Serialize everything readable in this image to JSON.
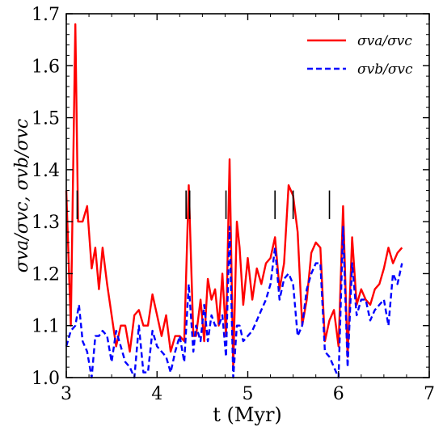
{
  "chart_data": {
    "type": "line",
    "xlabel": "t (Myr)",
    "ylabel": "σva/σvc, σvb/σvc",
    "xlim": [
      3,
      7
    ],
    "ylim": [
      1.0,
      1.7
    ],
    "xticks": [
      "3",
      "4",
      "5",
      "6",
      "7"
    ],
    "yticks": [
      "1.0",
      "1.1",
      "1.2",
      "1.3",
      "1.4",
      "1.5",
      "1.6",
      "1.7"
    ],
    "legend_position": "top-right",
    "markers_t": [
      3.12,
      4.32,
      4.36,
      4.76,
      5.3,
      5.5,
      5.9
    ],
    "series": [
      {
        "name": "σva/σvc",
        "color": "#ff0000",
        "style": "solid",
        "x": [
          3.0,
          3.05,
          3.1,
          3.13,
          3.18,
          3.23,
          3.28,
          3.32,
          3.36,
          3.4,
          3.45,
          3.5,
          3.55,
          3.6,
          3.65,
          3.7,
          3.75,
          3.8,
          3.85,
          3.9,
          3.95,
          4.0,
          4.05,
          4.1,
          4.15,
          4.2,
          4.25,
          4.3,
          4.35,
          4.4,
          4.43,
          4.48,
          4.52,
          4.56,
          4.6,
          4.64,
          4.68,
          4.72,
          4.76,
          4.8,
          4.84,
          4.88,
          4.91,
          4.95,
          5.0,
          5.05,
          5.1,
          5.15,
          5.2,
          5.25,
          5.3,
          5.35,
          5.4,
          5.45,
          5.5,
          5.55,
          5.6,
          5.65,
          5.7,
          5.75,
          5.8,
          5.85,
          5.9,
          5.95,
          6.0,
          6.05,
          6.1,
          6.15,
          6.2,
          6.25,
          6.3,
          6.35,
          6.4,
          6.45,
          6.5,
          6.55,
          6.6,
          6.65,
          6.7
        ],
        "y": [
          1.36,
          1.1,
          1.68,
          1.3,
          1.3,
          1.33,
          1.21,
          1.25,
          1.17,
          1.25,
          1.18,
          1.12,
          1.06,
          1.1,
          1.1,
          1.05,
          1.12,
          1.13,
          1.1,
          1.1,
          1.16,
          1.12,
          1.08,
          1.12,
          1.05,
          1.08,
          1.08,
          1.07,
          1.37,
          1.08,
          1.08,
          1.15,
          1.07,
          1.19,
          1.15,
          1.17,
          1.1,
          1.2,
          1.08,
          1.42,
          1.02,
          1.3,
          1.25,
          1.14,
          1.23,
          1.15,
          1.21,
          1.18,
          1.22,
          1.23,
          1.27,
          1.17,
          1.22,
          1.37,
          1.35,
          1.28,
          1.1,
          1.15,
          1.24,
          1.26,
          1.25,
          1.07,
          1.11,
          1.13,
          1.06,
          1.33,
          1.04,
          1.27,
          1.14,
          1.17,
          1.15,
          1.14,
          1.17,
          1.18,
          1.21,
          1.25,
          1.22,
          1.24,
          1.25
        ]
      },
      {
        "name": "σvb/σvc",
        "color": "#0000ff",
        "style": "dashed",
        "x": [
          3.0,
          3.05,
          3.1,
          3.14,
          3.18,
          3.23,
          3.28,
          3.32,
          3.36,
          3.4,
          3.45,
          3.5,
          3.55,
          3.6,
          3.65,
          3.7,
          3.75,
          3.8,
          3.85,
          3.9,
          3.95,
          4.0,
          4.05,
          4.1,
          4.15,
          4.2,
          4.25,
          4.3,
          4.35,
          4.4,
          4.43,
          4.48,
          4.52,
          4.56,
          4.6,
          4.64,
          4.68,
          4.72,
          4.76,
          4.8,
          4.84,
          4.88,
          4.91,
          4.95,
          5.0,
          5.05,
          5.1,
          5.15,
          5.2,
          5.25,
          5.3,
          5.35,
          5.4,
          5.45,
          5.5,
          5.55,
          5.6,
          5.65,
          5.7,
          5.75,
          5.8,
          5.85,
          5.9,
          5.95,
          6.0,
          6.05,
          6.1,
          6.15,
          6.2,
          6.25,
          6.3,
          6.35,
          6.4,
          6.45,
          6.5,
          6.55,
          6.6,
          6.65,
          6.7
        ],
        "y": [
          1.06,
          1.09,
          1.1,
          1.14,
          1.07,
          1.05,
          1.0,
          1.08,
          1.08,
          1.09,
          1.08,
          1.03,
          1.09,
          1.06,
          1.03,
          1.02,
          1.0,
          1.1,
          1.01,
          1.01,
          1.09,
          1.06,
          1.05,
          1.04,
          1.01,
          1.05,
          1.08,
          1.03,
          1.18,
          1.05,
          1.1,
          1.07,
          1.14,
          1.07,
          1.12,
          1.1,
          1.1,
          1.12,
          1.04,
          1.29,
          1.0,
          1.1,
          1.1,
          1.07,
          1.08,
          1.09,
          1.11,
          1.13,
          1.15,
          1.18,
          1.25,
          1.15,
          1.19,
          1.2,
          1.18,
          1.08,
          1.1,
          1.17,
          1.2,
          1.22,
          1.22,
          1.05,
          1.04,
          1.02,
          1.0,
          1.29,
          1.02,
          1.22,
          1.12,
          1.15,
          1.15,
          1.11,
          1.13,
          1.14,
          1.15,
          1.1,
          1.2,
          1.18,
          1.22
        ]
      }
    ]
  }
}
